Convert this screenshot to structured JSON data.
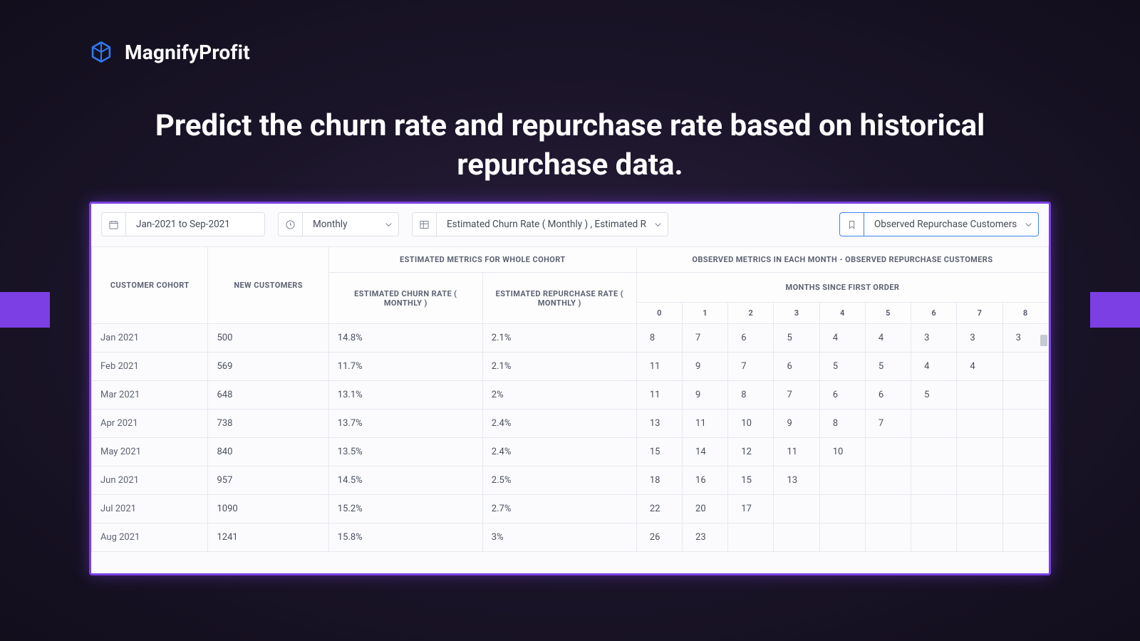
{
  "brand": {
    "name": "MagnifyProfit",
    "icon_color": "#2f7af5"
  },
  "headline": "Predict the churn rate and repurchase rate based on historical repurchase data.",
  "colors": {
    "accent_purple": "#7b3fe4",
    "panel_bg": "#fbfbfd",
    "border": "#dcdfe6",
    "observed_border": "#3b82f6",
    "text": "#4a505c",
    "header_text": "#5c6270"
  },
  "filters": {
    "date_range": "Jan-2021 to Sep-2021",
    "frequency": "Monthly",
    "metrics": "Estimated Churn Rate ( Monthly ) , Estimated R",
    "observed": "Observed Repurchase Customers"
  },
  "table": {
    "headers": {
      "cohort": "CUSTOMER COHORT",
      "new_customers": "NEW CUSTOMERS",
      "estimated_group": "ESTIMATED METRICS FOR WHOLE COHORT",
      "observed_group": "OBSERVED METRICS IN EACH MONTH - OBSERVED REPURCHASE CUSTOMERS",
      "churn": "ESTIMATED CHURN RATE ( MONTHLY )",
      "repurchase": "ESTIMATED REPURCHASE RATE ( MONTHLY )",
      "months_since": "MONTHS SINCE FIRST ORDER",
      "month_cols": [
        "0",
        "1",
        "2",
        "3",
        "4",
        "5",
        "6",
        "7",
        "8"
      ]
    },
    "rows": [
      {
        "cohort": "Jan 2021",
        "new": "500",
        "churn": "14.8%",
        "rep": "2.1%",
        "m": [
          "8",
          "7",
          "6",
          "5",
          "4",
          "4",
          "3",
          "3",
          "3"
        ]
      },
      {
        "cohort": "Feb 2021",
        "new": "569",
        "churn": "11.7%",
        "rep": "2.1%",
        "m": [
          "11",
          "9",
          "7",
          "6",
          "5",
          "5",
          "4",
          "4",
          ""
        ]
      },
      {
        "cohort": "Mar 2021",
        "new": "648",
        "churn": "13.1%",
        "rep": "2%",
        "m": [
          "11",
          "9",
          "8",
          "7",
          "6",
          "6",
          "5",
          "",
          ""
        ]
      },
      {
        "cohort": "Apr 2021",
        "new": "738",
        "churn": "13.7%",
        "rep": "2.4%",
        "m": [
          "13",
          "11",
          "10",
          "9",
          "8",
          "7",
          "",
          "",
          ""
        ]
      },
      {
        "cohort": "May 2021",
        "new": "840",
        "churn": "13.5%",
        "rep": "2.4%",
        "m": [
          "15",
          "14",
          "12",
          "11",
          "10",
          "",
          "",
          "",
          ""
        ]
      },
      {
        "cohort": "Jun 2021",
        "new": "957",
        "churn": "14.5%",
        "rep": "2.5%",
        "m": [
          "18",
          "16",
          "15",
          "13",
          "",
          "",
          "",
          "",
          ""
        ]
      },
      {
        "cohort": "Jul 2021",
        "new": "1090",
        "churn": "15.2%",
        "rep": "2.7%",
        "m": [
          "22",
          "20",
          "17",
          "",
          "",
          "",
          "",
          "",
          ""
        ]
      },
      {
        "cohort": "Aug 2021",
        "new": "1241",
        "churn": "15.8%",
        "rep": "3%",
        "m": [
          "26",
          "23",
          "",
          "",
          "",
          "",
          "",
          "",
          ""
        ]
      }
    ]
  }
}
